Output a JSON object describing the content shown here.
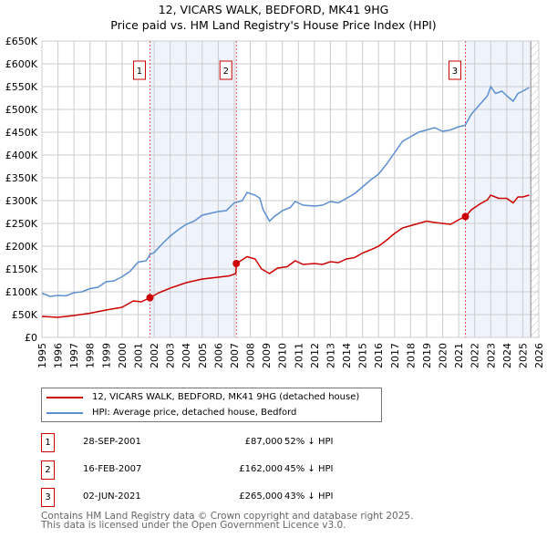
{
  "chart_data": {
    "type": "line",
    "title": "12, VICARS WALK, BEDFORD, MK41 9HG",
    "subtitle": "Price paid vs. HM Land Registry's House Price Index (HPI)",
    "xlim": [
      1995,
      2026
    ],
    "ylim": [
      0,
      650000
    ],
    "y_ticks": [
      {
        "v": 0,
        "label": "£0"
      },
      {
        "v": 50000,
        "label": "£50K"
      },
      {
        "v": 100000,
        "label": "£100K"
      },
      {
        "v": 150000,
        "label": "£150K"
      },
      {
        "v": 200000,
        "label": "£200K"
      },
      {
        "v": 250000,
        "label": "£250K"
      },
      {
        "v": 300000,
        "label": "£300K"
      },
      {
        "v": 350000,
        "label": "£350K"
      },
      {
        "v": 400000,
        "label": "£400K"
      },
      {
        "v": 450000,
        "label": "£450K"
      },
      {
        "v": 500000,
        "label": "£500K"
      },
      {
        "v": 550000,
        "label": "£550K"
      },
      {
        "v": 600000,
        "label": "£600K"
      },
      {
        "v": 650000,
        "label": "£650K"
      }
    ],
    "x_ticks": [
      "1995",
      "1996",
      "1997",
      "1998",
      "1999",
      "2000",
      "2001",
      "2002",
      "2003",
      "2004",
      "2005",
      "2006",
      "2007",
      "2008",
      "2009",
      "2010",
      "2011",
      "2012",
      "2013",
      "2014",
      "2015",
      "2016",
      "2017",
      "2018",
      "2019",
      "2020",
      "2021",
      "2022",
      "2023",
      "2024",
      "2025",
      "2026"
    ],
    "grid": true,
    "shaded": [
      [
        2001.74,
        2007.13
      ],
      [
        2021.42,
        2025.5
      ]
    ],
    "hatched_from": 2025.5,
    "series": [
      {
        "name": "12, VICARS WALK, BEDFORD, MK41 9HG (detached house)",
        "color": "#cc0000",
        "points": [
          [
            1995,
            46
          ],
          [
            1996,
            44
          ],
          [
            1997,
            48
          ],
          [
            1998,
            53
          ],
          [
            1999,
            60
          ],
          [
            2000,
            66
          ],
          [
            2000.7,
            80
          ],
          [
            2001.2,
            78
          ],
          [
            2001.74,
            87
          ],
          [
            2002.3,
            98
          ],
          [
            2003,
            108
          ],
          [
            2004,
            120
          ],
          [
            2005,
            128
          ],
          [
            2006,
            132
          ],
          [
            2006.7,
            135
          ],
          [
            2007.1,
            140
          ],
          [
            2007.13,
            162
          ],
          [
            2007.8,
            177
          ],
          [
            2008.3,
            172
          ],
          [
            2008.7,
            150
          ],
          [
            2009.2,
            140
          ],
          [
            2009.7,
            152
          ],
          [
            2010.3,
            155
          ],
          [
            2010.8,
            168
          ],
          [
            2011.3,
            160
          ],
          [
            2012,
            162
          ],
          [
            2012.5,
            160
          ],
          [
            2013,
            166
          ],
          [
            2013.5,
            164
          ],
          [
            2014,
            172
          ],
          [
            2014.5,
            175
          ],
          [
            2015,
            185
          ],
          [
            2015.5,
            192
          ],
          [
            2016,
            200
          ],
          [
            2016.5,
            213
          ],
          [
            2017,
            228
          ],
          [
            2017.5,
            240
          ],
          [
            2018,
            245
          ],
          [
            2018.5,
            250
          ],
          [
            2019,
            255
          ],
          [
            2019.5,
            252
          ],
          [
            2020,
            250
          ],
          [
            2020.5,
            248
          ],
          [
            2021,
            258
          ],
          [
            2021.42,
            265
          ],
          [
            2021.8,
            280
          ],
          [
            2022.3,
            292
          ],
          [
            2022.8,
            302
          ],
          [
            2023,
            312
          ],
          [
            2023.5,
            305
          ],
          [
            2024,
            305
          ],
          [
            2024.4,
            295
          ],
          [
            2024.7,
            308
          ],
          [
            2025,
            308
          ],
          [
            2025.4,
            312
          ]
        ]
      },
      {
        "name": "HPI: Average price, detached house, Bedford",
        "color": "#5b8fd0",
        "points": [
          [
            1995,
            97
          ],
          [
            1995.5,
            90
          ],
          [
            1996,
            92
          ],
          [
            1996.5,
            91
          ],
          [
            1997,
            98
          ],
          [
            1997.5,
            100
          ],
          [
            1998,
            107
          ],
          [
            1998.5,
            110
          ],
          [
            1999,
            122
          ],
          [
            1999.5,
            124
          ],
          [
            2000,
            133
          ],
          [
            2000.5,
            145
          ],
          [
            2001,
            165
          ],
          [
            2001.5,
            168
          ],
          [
            2001.75,
            182
          ],
          [
            2002,
            186
          ],
          [
            2002.5,
            205
          ],
          [
            2003,
            222
          ],
          [
            2003.5,
            236
          ],
          [
            2004,
            248
          ],
          [
            2004.5,
            255
          ],
          [
            2005,
            268
          ],
          [
            2005.5,
            272
          ],
          [
            2006,
            276
          ],
          [
            2006.5,
            278
          ],
          [
            2007,
            295
          ],
          [
            2007.5,
            300
          ],
          [
            2007.8,
            318
          ],
          [
            2008.3,
            312
          ],
          [
            2008.6,
            305
          ],
          [
            2008.8,
            280
          ],
          [
            2009.2,
            255
          ],
          [
            2009.5,
            265
          ],
          [
            2010,
            278
          ],
          [
            2010.5,
            285
          ],
          [
            2010.8,
            298
          ],
          [
            2011.3,
            290
          ],
          [
            2012,
            288
          ],
          [
            2012.5,
            290
          ],
          [
            2013,
            298
          ],
          [
            2013.5,
            295
          ],
          [
            2014,
            305
          ],
          [
            2014.5,
            315
          ],
          [
            2015,
            330
          ],
          [
            2015.5,
            345
          ],
          [
            2016,
            358
          ],
          [
            2016.5,
            380
          ],
          [
            2017,
            405
          ],
          [
            2017.5,
            430
          ],
          [
            2018,
            440
          ],
          [
            2018.5,
            450
          ],
          [
            2019,
            455
          ],
          [
            2019.5,
            460
          ],
          [
            2020,
            452
          ],
          [
            2020.5,
            455
          ],
          [
            2021,
            462
          ],
          [
            2021.4,
            465
          ],
          [
            2021.8,
            490
          ],
          [
            2022.3,
            510
          ],
          [
            2022.8,
            530
          ],
          [
            2023,
            550
          ],
          [
            2023.3,
            535
          ],
          [
            2023.7,
            540
          ],
          [
            2024,
            530
          ],
          [
            2024.4,
            518
          ],
          [
            2024.7,
            535
          ],
          [
            2025,
            540
          ],
          [
            2025.4,
            548
          ]
        ]
      }
    ],
    "sales": [
      {
        "label": "1",
        "x": 2001.74,
        "price": 87000,
        "date": "28-SEP-2001",
        "price_text": "£87,000",
        "hpi": "52% ↓ HPI"
      },
      {
        "label": "2",
        "x": 2007.13,
        "price": 162000,
        "date": "16-FEB-2007",
        "price_text": "£162,000",
        "hpi": "45% ↓ HPI"
      },
      {
        "label": "3",
        "x": 2021.42,
        "price": 265000,
        "date": "02-JUN-2021",
        "price_text": "£265,000",
        "hpi": "43% ↓ HPI"
      }
    ]
  },
  "footer": {
    "line1": "Contains HM Land Registry data © Crown copyright and database right 2025.",
    "line2": "This data is licensed under the Open Government Licence v3.0."
  }
}
